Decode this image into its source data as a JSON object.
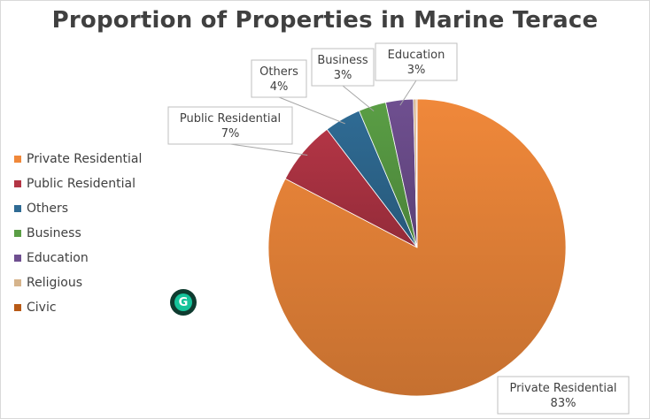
{
  "chart_data": {
    "type": "pie",
    "title": "Proportion of Properties in Marine Terace",
    "legend_position": "left",
    "slices": [
      {
        "label": "Private Residential",
        "value": 83,
        "color": "#f0883a",
        "show_label": true,
        "label_text": "83%"
      },
      {
        "label": "Public Residential",
        "value": 7,
        "color": "#b33545",
        "show_label": true,
        "label_text": "7%"
      },
      {
        "label": "Others",
        "value": 4,
        "color": "#2f6b94",
        "show_label": true,
        "label_text": "4%"
      },
      {
        "label": "Business",
        "value": 3,
        "color": "#5a9e45",
        "show_label": true,
        "label_text": "3%"
      },
      {
        "label": "Education",
        "value": 3,
        "color": "#6f4f90",
        "show_label": true,
        "label_text": "3%"
      },
      {
        "label": "Religious",
        "value": 0.3,
        "color": "#d6b48c",
        "show_label": false,
        "label_text": ""
      },
      {
        "label": "Civic",
        "value": 0.1,
        "color": "#b85a16",
        "show_label": false,
        "label_text": ""
      }
    ]
  },
  "widgets": {
    "grammarly_icon": "grammarly-icon",
    "grammarly_letter": "G"
  }
}
